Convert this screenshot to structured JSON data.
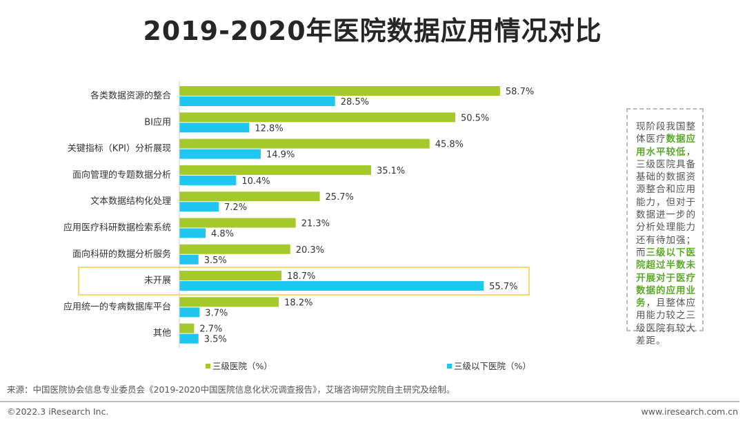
{
  "title": "2019-2020年医院数据应用情况对比",
  "chart_data": {
    "type": "bar",
    "orientation": "horizontal",
    "categories": [
      "各类数据资源的整合",
      "BI应用",
      "关键指标（KPI）分析展现",
      "面向管理的专题数据分析",
      "文本数据结构化处理",
      "应用医疗科研数据检索系统",
      "面向科研的数据分析服务",
      "未开展",
      "应用统一的专病数据库平台",
      "其他"
    ],
    "series": [
      {
        "name": "三级医院（%）",
        "color": "#a5c92b",
        "values": [
          58.7,
          50.5,
          45.8,
          35.1,
          25.7,
          21.3,
          20.3,
          18.7,
          18.2,
          2.7
        ]
      },
      {
        "name": "三级以下医院（%）",
        "color": "#1fc6ef",
        "values": [
          28.5,
          12.8,
          14.9,
          10.4,
          7.2,
          4.8,
          3.5,
          55.7,
          3.7,
          3.5
        ]
      }
    ],
    "value_suffix": "%",
    "highlighted_category": "未开展",
    "highlight_color": "#f2cf3a",
    "legend_position": "bottom",
    "grid": false
  },
  "note": {
    "parts": [
      {
        "text": "现阶段我国整体医疗",
        "hl": false
      },
      {
        "text": "数据应用水平较低",
        "hl": true
      },
      {
        "text": "，三级医院具备基础的数据资源整合和应用能力，但对于数据进一步的分析处理能力还有待加强；而",
        "hl": false
      },
      {
        "text": "三级以下医院超过半数未开展对于医疗数据的应用业务",
        "hl": true
      },
      {
        "text": "，且整体应用能力较之三级医院有较大差距。",
        "hl": false
      }
    ]
  },
  "source": "来源：中国医院协会信息专业委员会《2019-2020中国医院信息化状况调查报告》，艾瑞咨询研究院自主研究及绘制。",
  "copyright": "©2022.3 iResearch Inc.",
  "website": "www.iresearch.com.cn"
}
